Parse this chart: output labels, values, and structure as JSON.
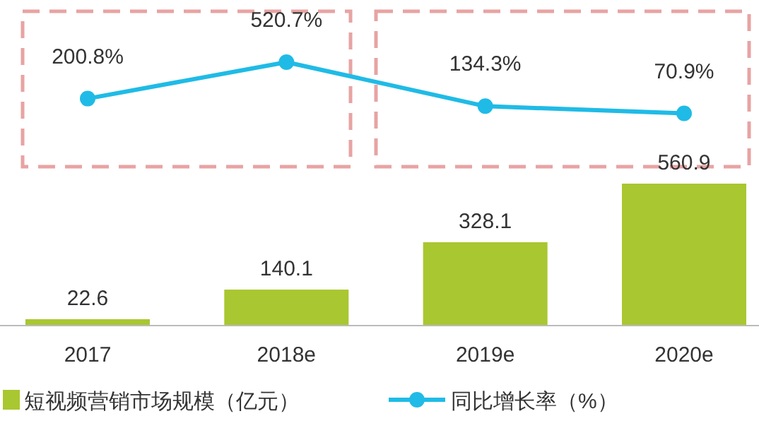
{
  "chart_data": [
    {
      "type": "line",
      "categories": [
        null,
        null,
        null,
        null
      ],
      "series": [
        {
          "name": "同比增长率（%）",
          "color": "#1fbbe6",
          "values": [
            200.8,
            520.7,
            134.3,
            70.9
          ],
          "value_labels": [
            "200.8%",
            "520.7%",
            "134.3%",
            "70.9%"
          ]
        }
      ],
      "data_labels": true,
      "marker": "circle",
      "legend": "bottom"
    },
    {
      "type": "bar",
      "categories": [
        "2017",
        "2018e",
        "2019e",
        "2020e"
      ],
      "series": [
        {
          "name": "短视频营销市场规模（亿元）",
          "color": "#a9c730",
          "values": [
            22.6,
            140.1,
            328.1,
            560.9
          ]
        }
      ],
      "data_labels": true,
      "legend": "bottom"
    }
  ]
}
